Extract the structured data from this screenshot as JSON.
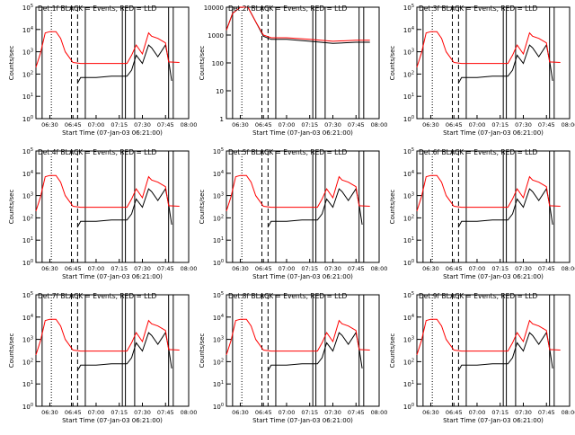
{
  "figure": {
    "xlabel": "Start Time (07-Jan-03 06:21:00)",
    "ylabel": "Counts/sec",
    "x_ticks": [
      "06:30",
      "06:45",
      "07:00",
      "07:15",
      "07:30",
      "07:45",
      "08:00"
    ]
  },
  "colors": {
    "events": "#000000",
    "lld": "#ff0000"
  },
  "chart_data": [
    {
      "type": "line",
      "title": "Det 1f BLACK = Events, RED = LLD",
      "xlabel": "Start Time (07-Jan-03 06:21:00)",
      "ylabel": "Counts/sec",
      "xlim": [
        "06:21",
        "08:00"
      ],
      "ylim": [
        1,
        100000
      ],
      "y_scale": "log",
      "y_ticks": [
        "10^0",
        "10^1",
        "10^2",
        "10^3",
        "10^4",
        "10^5"
      ],
      "x_ticks": [
        "06:30",
        "06:45",
        "07:00",
        "07:15",
        "07:30",
        "07:45",
        "08:00"
      ],
      "series": [
        {
          "name": "Events",
          "color": "#000000",
          "x": [
            "06:48",
            "06:50",
            "07:00",
            "07:10",
            "07:15",
            "07:20",
            "07:23",
            "07:26",
            "07:30",
            "07:34",
            "07:36",
            "07:40",
            "07:45",
            "07:47",
            "07:49"
          ],
          "y": [
            40,
            70,
            70,
            80,
            80,
            80,
            150,
            700,
            300,
            2000,
            1500,
            600,
            2000,
            400,
            50
          ]
        },
        {
          "name": "LLD",
          "color": "#ff0000",
          "x": [
            "06:21",
            "06:24",
            "06:27",
            "06:30",
            "06:34",
            "06:37",
            "06:40",
            "06:45",
            "06:50",
            "07:00",
            "07:10",
            "07:20",
            "07:23",
            "07:26",
            "07:30",
            "07:34",
            "07:36",
            "07:40",
            "07:45",
            "07:47",
            "07:54"
          ],
          "y": [
            200,
            900,
            7000,
            8000,
            8000,
            4000,
            1000,
            330,
            300,
            300,
            300,
            300,
            700,
            2000,
            800,
            7000,
            5000,
            4000,
            2500,
            350,
            330
          ]
        }
      ]
    },
    {
      "type": "line",
      "title": "Det 2f BLACK = Events, RED = LLD",
      "xlabel": "Start Time (07-Jan-03 06:21:00)",
      "ylabel": "Counts/sec",
      "xlim": [
        "06:21",
        "08:00"
      ],
      "ylim": [
        1,
        10000
      ],
      "y_scale": "log",
      "y_ticks": [
        "1",
        "10",
        "100",
        "1000",
        "10000"
      ],
      "x_ticks": [
        "06:30",
        "06:45",
        "07:00",
        "07:15",
        "07:30",
        "07:45",
        "08:00"
      ],
      "series": [
        {
          "name": "Events",
          "color": "#000000",
          "x": [
            "06:21",
            "06:25",
            "06:30",
            "06:35",
            "06:40",
            "06:45",
            "06:50",
            "07:00",
            "07:15",
            "07:30",
            "07:45",
            "07:54"
          ],
          "y": [
            1500,
            6000,
            10000,
            10000,
            3000,
            900,
            700,
            700,
            600,
            500,
            550,
            550
          ]
        },
        {
          "name": "LLD",
          "color": "#ff0000",
          "x": [
            "06:21",
            "06:25",
            "06:30",
            "06:35",
            "06:40",
            "06:45",
            "06:50",
            "07:00",
            "07:15",
            "07:30",
            "07:45",
            "07:54"
          ],
          "y": [
            1500,
            6000,
            10000,
            10000,
            3000,
            1000,
            800,
            800,
            700,
            600,
            650,
            650
          ]
        }
      ]
    },
    {
      "type": "line",
      "title": "Det 3f BLACK = Events, RED = LLD",
      "xlabel": "Start Time (07-Jan-03 06:21:00)",
      "ylabel": "Counts/sec",
      "xlim": [
        "06:21",
        "08:00"
      ],
      "ylim": [
        1,
        100000
      ],
      "y_scale": "log",
      "y_ticks": [
        "10^0",
        "10^1",
        "10^2",
        "10^3",
        "10^4",
        "10^5"
      ],
      "x_ticks": [
        "06:30",
        "06:45",
        "07:00",
        "07:15",
        "07:30",
        "07:45",
        "08:00"
      ],
      "series": [
        {
          "name": "Events",
          "color": "#000000",
          "x": [
            "06:48",
            "06:50",
            "07:00",
            "07:10",
            "07:15",
            "07:20",
            "07:23",
            "07:26",
            "07:30",
            "07:34",
            "07:36",
            "07:40",
            "07:45",
            "07:47",
            "07:49"
          ],
          "y": [
            40,
            70,
            70,
            80,
            80,
            80,
            150,
            700,
            300,
            2000,
            1500,
            600,
            2000,
            400,
            50
          ]
        },
        {
          "name": "LLD",
          "color": "#ff0000",
          "x": [
            "06:21",
            "06:24",
            "06:27",
            "06:30",
            "06:34",
            "06:37",
            "06:40",
            "06:45",
            "06:50",
            "07:00",
            "07:10",
            "07:20",
            "07:23",
            "07:26",
            "07:30",
            "07:34",
            "07:36",
            "07:40",
            "07:45",
            "07:47",
            "07:54"
          ],
          "y": [
            200,
            900,
            7000,
            8000,
            8000,
            4000,
            1000,
            330,
            300,
            300,
            300,
            300,
            700,
            2000,
            800,
            7000,
            5000,
            4000,
            2500,
            350,
            330
          ]
        }
      ]
    },
    {
      "type": "line",
      "title": "Det 4f BLACK = Events, RED = LLD",
      "xlabel": "Start Time (07-Jan-03 06:21:00)",
      "ylabel": "Counts/sec",
      "xlim": [
        "06:21",
        "08:00"
      ],
      "ylim": [
        1,
        100000
      ],
      "y_scale": "log",
      "y_ticks": [
        "10^0",
        "10^1",
        "10^2",
        "10^3",
        "10^4",
        "10^5"
      ],
      "x_ticks": [
        "06:30",
        "06:45",
        "07:00",
        "07:15",
        "07:30",
        "07:45",
        "08:00"
      ],
      "series": [
        {
          "name": "Events",
          "color": "#000000",
          "x": [
            "06:48",
            "06:50",
            "07:00",
            "07:10",
            "07:15",
            "07:20",
            "07:23",
            "07:26",
            "07:30",
            "07:34",
            "07:36",
            "07:40",
            "07:45",
            "07:47",
            "07:49"
          ],
          "y": [
            40,
            70,
            70,
            80,
            80,
            80,
            150,
            700,
            300,
            2000,
            1500,
            600,
            2000,
            400,
            50
          ]
        },
        {
          "name": "LLD",
          "color": "#ff0000",
          "x": [
            "06:21",
            "06:24",
            "06:27",
            "06:30",
            "06:34",
            "06:37",
            "06:40",
            "06:45",
            "06:50",
            "07:00",
            "07:10",
            "07:20",
            "07:23",
            "07:26",
            "07:30",
            "07:34",
            "07:36",
            "07:40",
            "07:45",
            "07:47",
            "07:54"
          ],
          "y": [
            200,
            900,
            7000,
            8000,
            8000,
            4000,
            1000,
            330,
            300,
            300,
            300,
            300,
            700,
            2000,
            800,
            7000,
            5000,
            4000,
            2500,
            350,
            330
          ]
        }
      ]
    },
    {
      "type": "line",
      "title": "Det 5f BLACK = Events, RED = LLD",
      "xlabel": "Start Time (07-Jan-03 06:21:00)",
      "ylabel": "Counts/sec",
      "xlim": [
        "06:21",
        "08:00"
      ],
      "ylim": [
        1,
        100000
      ],
      "y_scale": "log",
      "y_ticks": [
        "10^0",
        "10^1",
        "10^2",
        "10^3",
        "10^4",
        "10^5"
      ],
      "x_ticks": [
        "06:30",
        "06:45",
        "07:00",
        "07:15",
        "07:30",
        "07:45",
        "08:00"
      ],
      "series": [
        {
          "name": "Events",
          "color": "#000000",
          "x": [
            "06:48",
            "06:50",
            "07:00",
            "07:10",
            "07:15",
            "07:20",
            "07:23",
            "07:26",
            "07:30",
            "07:34",
            "07:36",
            "07:40",
            "07:45",
            "07:47",
            "07:49"
          ],
          "y": [
            40,
            70,
            70,
            80,
            80,
            80,
            150,
            700,
            300,
            2000,
            1500,
            600,
            2000,
            400,
            50
          ]
        },
        {
          "name": "LLD",
          "color": "#ff0000",
          "x": [
            "06:21",
            "06:24",
            "06:27",
            "06:30",
            "06:34",
            "06:37",
            "06:40",
            "06:45",
            "06:50",
            "07:00",
            "07:10",
            "07:20",
            "07:23",
            "07:26",
            "07:30",
            "07:34",
            "07:36",
            "07:40",
            "07:45",
            "07:47",
            "07:54"
          ],
          "y": [
            200,
            900,
            7000,
            8000,
            8000,
            4000,
            1000,
            330,
            300,
            300,
            300,
            300,
            700,
            2000,
            800,
            7000,
            5000,
            4000,
            2500,
            350,
            330
          ]
        }
      ]
    },
    {
      "type": "line",
      "title": "Det 6f BLACK = Events, RED = LLD",
      "xlabel": "Start Time (07-Jan-03 06:21:00)",
      "ylabel": "Counts/sec",
      "xlim": [
        "06:21",
        "08:00"
      ],
      "ylim": [
        1,
        100000
      ],
      "y_scale": "log",
      "y_ticks": [
        "10^0",
        "10^1",
        "10^2",
        "10^3",
        "10^4",
        "10^5"
      ],
      "x_ticks": [
        "06:30",
        "06:45",
        "07:00",
        "07:15",
        "07:30",
        "07:45",
        "08:00"
      ],
      "series": [
        {
          "name": "Events",
          "color": "#000000",
          "x": [
            "06:48",
            "06:50",
            "07:00",
            "07:10",
            "07:15",
            "07:20",
            "07:23",
            "07:26",
            "07:30",
            "07:34",
            "07:36",
            "07:40",
            "07:45",
            "07:47",
            "07:49"
          ],
          "y": [
            40,
            70,
            70,
            80,
            80,
            80,
            150,
            700,
            300,
            2000,
            1500,
            600,
            2000,
            400,
            50
          ]
        },
        {
          "name": "LLD",
          "color": "#ff0000",
          "x": [
            "06:21",
            "06:24",
            "06:27",
            "06:30",
            "06:34",
            "06:37",
            "06:40",
            "06:45",
            "06:50",
            "07:00",
            "07:10",
            "07:20",
            "07:23",
            "07:26",
            "07:30",
            "07:34",
            "07:36",
            "07:40",
            "07:45",
            "07:47",
            "07:54"
          ],
          "y": [
            200,
            900,
            7000,
            8000,
            8000,
            4000,
            1000,
            330,
            300,
            300,
            300,
            300,
            700,
            2000,
            800,
            7000,
            5000,
            4000,
            2500,
            350,
            330
          ]
        }
      ]
    },
    {
      "type": "line",
      "title": "Det 7f BLACK = Events, RED = LLD",
      "xlabel": "Start Time (07-Jan-03 06:21:00)",
      "ylabel": "Counts/sec",
      "xlim": [
        "06:21",
        "08:00"
      ],
      "ylim": [
        1,
        100000
      ],
      "y_scale": "log",
      "y_ticks": [
        "10^0",
        "10^1",
        "10^2",
        "10^3",
        "10^4",
        "10^5"
      ],
      "x_ticks": [
        "06:30",
        "06:45",
        "07:00",
        "07:15",
        "07:30",
        "07:45",
        "08:00"
      ],
      "series": [
        {
          "name": "Events",
          "color": "#000000",
          "x": [
            "06:48",
            "06:50",
            "07:00",
            "07:10",
            "07:15",
            "07:20",
            "07:23",
            "07:26",
            "07:30",
            "07:34",
            "07:36",
            "07:40",
            "07:45",
            "07:47",
            "07:49"
          ],
          "y": [
            40,
            70,
            70,
            80,
            80,
            80,
            150,
            700,
            300,
            2000,
            1500,
            600,
            2000,
            400,
            50
          ]
        },
        {
          "name": "LLD",
          "color": "#ff0000",
          "x": [
            "06:21",
            "06:24",
            "06:27",
            "06:30",
            "06:34",
            "06:37",
            "06:40",
            "06:45",
            "06:50",
            "07:00",
            "07:10",
            "07:20",
            "07:23",
            "07:26",
            "07:30",
            "07:34",
            "07:36",
            "07:40",
            "07:45",
            "07:47",
            "07:54"
          ],
          "y": [
            200,
            900,
            7000,
            8000,
            8000,
            4000,
            1000,
            330,
            300,
            300,
            300,
            300,
            700,
            2000,
            800,
            7000,
            5000,
            4000,
            2500,
            350,
            330
          ]
        }
      ]
    },
    {
      "type": "line",
      "title": "Det 8f BLACK = Events, RED = LLD",
      "xlabel": "Start Time (07-Jan-03 06:21:00)",
      "ylabel": "Counts/sec",
      "xlim": [
        "06:21",
        "08:00"
      ],
      "ylim": [
        1,
        100000
      ],
      "y_scale": "log",
      "y_ticks": [
        "10^0",
        "10^1",
        "10^2",
        "10^3",
        "10^4",
        "10^5"
      ],
      "x_ticks": [
        "06:30",
        "06:45",
        "07:00",
        "07:15",
        "07:30",
        "07:45",
        "08:00"
      ],
      "series": [
        {
          "name": "Events",
          "color": "#000000",
          "x": [
            "06:48",
            "06:50",
            "07:00",
            "07:10",
            "07:15",
            "07:20",
            "07:23",
            "07:26",
            "07:30",
            "07:34",
            "07:36",
            "07:40",
            "07:45",
            "07:47",
            "07:49"
          ],
          "y": [
            40,
            70,
            70,
            80,
            80,
            80,
            150,
            700,
            300,
            2000,
            1500,
            600,
            2000,
            400,
            50
          ]
        },
        {
          "name": "LLD",
          "color": "#ff0000",
          "x": [
            "06:21",
            "06:24",
            "06:27",
            "06:30",
            "06:34",
            "06:37",
            "06:40",
            "06:45",
            "06:50",
            "07:00",
            "07:10",
            "07:20",
            "07:23",
            "07:26",
            "07:30",
            "07:34",
            "07:36",
            "07:40",
            "07:45",
            "07:47",
            "07:54"
          ],
          "y": [
            200,
            900,
            7000,
            8000,
            8000,
            4000,
            1000,
            330,
            300,
            300,
            300,
            300,
            700,
            2000,
            800,
            7000,
            5000,
            4000,
            2500,
            350,
            330
          ]
        }
      ]
    },
    {
      "type": "line",
      "title": "Det 9f BLACK = Events, RED = LLD",
      "xlabel": "Start Time (07-Jan-03 06:21:00)",
      "ylabel": "Counts/sec",
      "xlim": [
        "06:21",
        "08:00"
      ],
      "ylim": [
        1,
        100000
      ],
      "y_scale": "log",
      "y_ticks": [
        "10^0",
        "10^1",
        "10^2",
        "10^3",
        "10^4",
        "10^5"
      ],
      "x_ticks": [
        "06:30",
        "06:45",
        "07:00",
        "07:15",
        "07:30",
        "07:45",
        "08:00"
      ],
      "series": [
        {
          "name": "Events",
          "color": "#000000",
          "x": [
            "06:48",
            "06:50",
            "07:00",
            "07:10",
            "07:15",
            "07:20",
            "07:23",
            "07:26",
            "07:30",
            "07:34",
            "07:36",
            "07:40",
            "07:45",
            "07:47",
            "07:49"
          ],
          "y": [
            40,
            70,
            70,
            80,
            80,
            80,
            150,
            700,
            300,
            2000,
            1500,
            600,
            2000,
            400,
            50
          ]
        },
        {
          "name": "LLD",
          "color": "#ff0000",
          "x": [
            "06:21",
            "06:24",
            "06:27",
            "06:30",
            "06:34",
            "06:37",
            "06:40",
            "06:45",
            "06:50",
            "07:00",
            "07:10",
            "07:20",
            "07:23",
            "07:26",
            "07:30",
            "07:34",
            "07:36",
            "07:40",
            "07:45",
            "07:47",
            "07:54"
          ],
          "y": [
            200,
            900,
            7000,
            8000,
            8000,
            4000,
            1000,
            330,
            300,
            300,
            300,
            300,
            700,
            2000,
            800,
            7000,
            5000,
            4000,
            2500,
            350,
            330
          ]
        }
      ]
    }
  ]
}
